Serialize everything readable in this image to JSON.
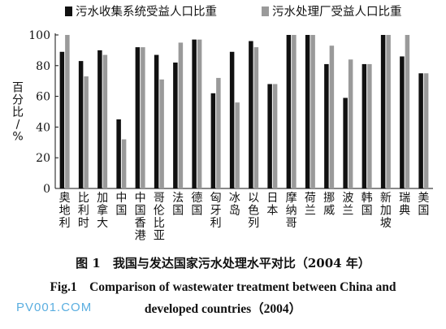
{
  "chart_data": {
    "type": "bar",
    "ylabel": "百分比/%",
    "ylim": [
      0,
      100
    ],
    "yticks": [
      0,
      20,
      40,
      60,
      80,
      100
    ],
    "legend_position": "top",
    "categories": [
      "奥地利",
      "比利时",
      "加拿大",
      "中国",
      "中国香港",
      "哥伦比亚",
      "法国",
      "德国",
      "匈牙利",
      "冰岛",
      "以色列",
      "日本",
      "摩纳哥",
      "荷兰",
      "挪威",
      "波兰",
      "韩国",
      "新加坡",
      "瑞典",
      "美国"
    ],
    "series": [
      {
        "name": "污水收集系统受益人口比重",
        "color": "#111111",
        "values": [
          89,
          83,
          90,
          45,
          92,
          87,
          82,
          97,
          62,
          89,
          96,
          68,
          100,
          100,
          81,
          59,
          81,
          100,
          86,
          75
        ]
      },
      {
        "name": "污水处理厂受益人口比重",
        "color": "#9a9a9a",
        "values": [
          100,
          73,
          87,
          32,
          92,
          71,
          95,
          97,
          72,
          56,
          92,
          68,
          100,
          100,
          93,
          84,
          81,
          100,
          100,
          75
        ]
      }
    ]
  },
  "caption": {
    "cn": "图 1　我国与发达国家污水处理水平对比（2004 年）",
    "en_line1": "Fig.1　Comparison of wastewater treatment between China and",
    "en_line2": "developed countries（2004）"
  },
  "watermark": "PV001.COM"
}
